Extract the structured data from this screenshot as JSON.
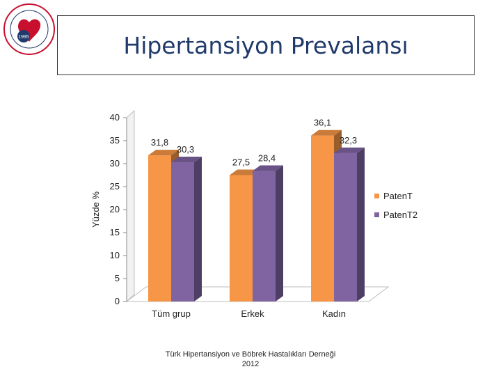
{
  "slide": {
    "title": "Hipertansiyon Prevalansı",
    "footer_line1": "Türk Hipertansiyon ve Böbrek Hastalıkları Derneği",
    "footer_line2": "2012",
    "logo_year": "1995"
  },
  "colors": {
    "title": "#1f3a6b",
    "orange": "#f79646",
    "purple": "#8064a2"
  },
  "chart_data": {
    "type": "bar",
    "categories": [
      "Tüm grup",
      "Erkek",
      "Kadın"
    ],
    "series": [
      {
        "name": "PatenT",
        "values": [
          31.8,
          27.5,
          36.1
        ],
        "labels": [
          "31,8",
          "27,5",
          "36,1"
        ],
        "color": "#f79646"
      },
      {
        "name": "PatenT2",
        "values": [
          30.3,
          28.4,
          32.3
        ],
        "labels": [
          "30,3",
          "28,4",
          "32,3"
        ],
        "color": "#8064a2"
      }
    ],
    "ylabel": "Yüzde %",
    "ylim": [
      0,
      40
    ],
    "yticks": [
      0,
      5,
      10,
      15,
      20,
      25,
      30,
      35,
      40
    ],
    "legend": "right",
    "grid": false
  }
}
